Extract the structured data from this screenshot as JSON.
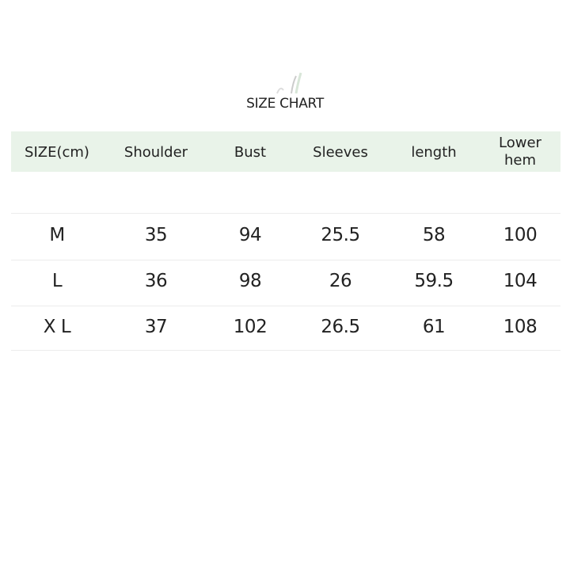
{
  "title": "SIZE CHART",
  "colors": {
    "header_bg": "#e9f3e9",
    "row_divider": "#ececec"
  },
  "table": {
    "headers": [
      "SIZE(cm)",
      "Shoulder",
      "Bust",
      "Sleeves",
      "length",
      "Lower\nhem"
    ],
    "rows": [
      [
        "M",
        "35",
        "94",
        "25.5",
        "58",
        "100"
      ],
      [
        "L",
        "36",
        "98",
        "26",
        "59.5",
        "104"
      ],
      [
        "X L",
        "37",
        "102",
        "26.5",
        "61",
        "108"
      ]
    ]
  }
}
